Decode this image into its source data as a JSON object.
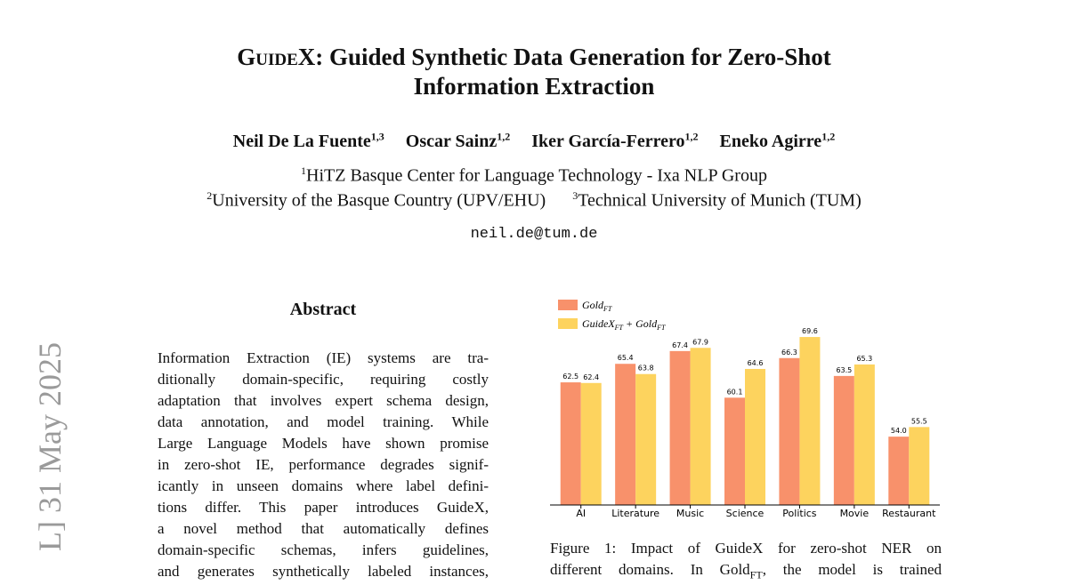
{
  "margin_stamp": "L] 31 May 2025",
  "header": {
    "title_name": "GuideX",
    "title_rest": ": Guided Synthetic Data Generation for Zero-Shot",
    "title_line2": "Information Extraction",
    "authors": [
      {
        "name": "Neil De La Fuente",
        "aff": "1,3"
      },
      {
        "name": "Oscar Sainz",
        "aff": "1,2"
      },
      {
        "name": "Iker García-Ferrero",
        "aff": "1,2"
      },
      {
        "name": "Eneko Agirre",
        "aff": "1,2"
      }
    ],
    "affiliations": [
      {
        "num": "1",
        "text": "HiTZ Basque Center for Language Technology - Ixa NLP Group"
      },
      {
        "num": "2",
        "text": "University of the Basque Country (UPV/EHU)"
      },
      {
        "num": "3",
        "text": "Technical University of Munich (TUM)"
      }
    ],
    "email": "neil.de@tum.de"
  },
  "abstract": {
    "heading": "Abstract",
    "lines": [
      "Information Extraction (IE) systems are tra-",
      "ditionally domain-specific, requiring costly",
      "adaptation that involves expert schema design,",
      "data annotation, and model training. While",
      "Large Language Models have shown promise",
      "in zero-shot IE, performance degrades signif-",
      "icantly in unseen domains where label defini-",
      "tions differ. This paper introduces GuideX,",
      "a novel method that automatically defines",
      "domain-specific schemas, infers guidelines,",
      "and generates synthetically labeled instances,"
    ]
  },
  "figure": {
    "caption_lines": [
      "Figure 1: Impact of GuideX for zero-shot NER on",
      "different domains. In Gold_FT, the model is trained"
    ]
  },
  "chart_data": {
    "type": "bar",
    "categories": [
      "AI",
      "Literature",
      "Music",
      "Science",
      "Politics",
      "Movie",
      "Restaurant"
    ],
    "series": [
      {
        "name": "Gold_FT",
        "color": "#f8916b",
        "values": [
          62.5,
          65.4,
          67.4,
          60.1,
          66.3,
          63.5,
          54.0
        ],
        "value_labels": [
          "62.5",
          "65.4",
          "67.4",
          "60.1",
          "66.3",
          "63.5",
          "54.0"
        ]
      },
      {
        "name": "GuideX_FT + Gold_FT",
        "color": "#fdd35e",
        "values": [
          62.4,
          63.8,
          67.9,
          64.6,
          69.6,
          65.3,
          55.5
        ]
      }
    ],
    "ylim": [
      43.3,
      71
    ],
    "legend": "upper left"
  }
}
